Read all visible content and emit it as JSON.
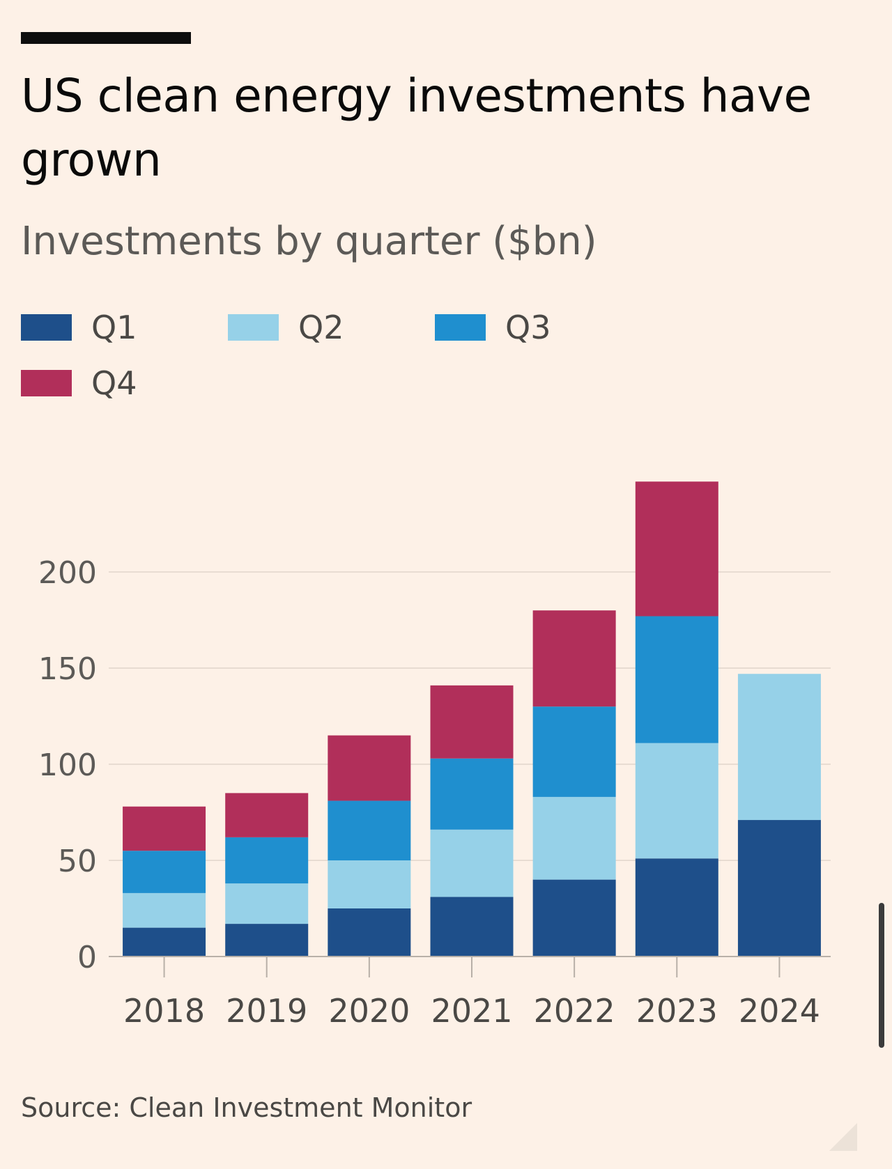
{
  "header": {
    "title": "US clean energy investments have grown",
    "subtitle": "Investments by quarter ($bn)"
  },
  "legend": [
    {
      "label": "Q1",
      "color": "#1e4f8a"
    },
    {
      "label": "Q2",
      "color": "#96d1e8"
    },
    {
      "label": "Q3",
      "color": "#1f8fcf"
    },
    {
      "label": "Q4",
      "color": "#b12f5a"
    }
  ],
  "footer": {
    "source": "Source: Clean Investment Monitor"
  },
  "chart_data": {
    "type": "bar",
    "stacked": true,
    "title": "US clean energy investments have grown",
    "subtitle": "Investments by quarter ($bn)",
    "xlabel": "",
    "ylabel": "",
    "categories": [
      "2018",
      "2019",
      "2020",
      "2021",
      "2022",
      "2023",
      "2024"
    ],
    "series": [
      {
        "name": "Q1",
        "color": "#1e4f8a",
        "values": [
          15,
          17,
          25,
          31,
          40,
          51,
          71
        ]
      },
      {
        "name": "Q2",
        "color": "#96d1e8",
        "values": [
          18,
          21,
          25,
          35,
          43,
          60,
          76
        ]
      },
      {
        "name": "Q3",
        "color": "#1f8fcf",
        "values": [
          22,
          24,
          31,
          37,
          47,
          66,
          null
        ]
      },
      {
        "name": "Q4",
        "color": "#b12f5a",
        "values": [
          23,
          23,
          34,
          38,
          50,
          70,
          null
        ]
      }
    ],
    "yticks": [
      0,
      50,
      100,
      150,
      200
    ],
    "ylim": [
      0,
      247
    ],
    "grid": true,
    "legend_position": "top-left"
  }
}
